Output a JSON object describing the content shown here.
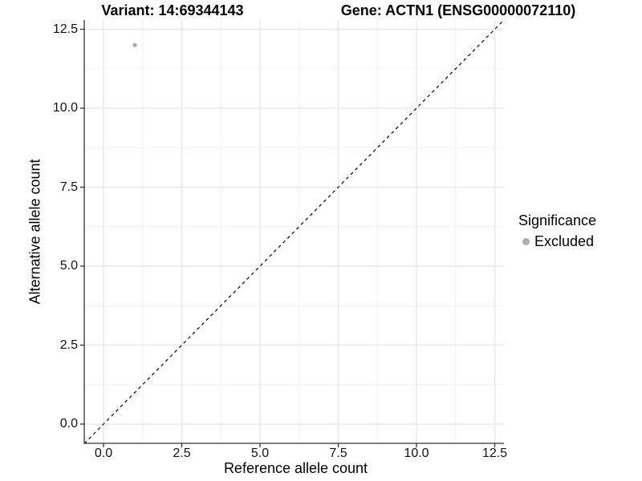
{
  "chart_data": {
    "type": "scatter",
    "titles": {
      "left": "Variant: 14:69344143",
      "right": "Gene: ACTN1 (ENSG00000072110)"
    },
    "x_axis": {
      "label": "Reference allele count",
      "ticks": [
        0,
        2.5,
        5,
        7.5,
        10,
        12.5
      ],
      "tick_labels": [
        "0.0",
        "2.5",
        "5.0",
        "7.5",
        "10.0",
        "12.5"
      ],
      "minor_ticks": [
        1.25,
        3.75,
        6.25,
        8.75,
        11.25
      ],
      "range": [
        -0.62,
        12.8
      ]
    },
    "y_axis": {
      "label": "Alternative allele count",
      "ticks": [
        0,
        2.5,
        5,
        7.5,
        10,
        12.5
      ],
      "tick_labels": [
        "0.0",
        "2.5",
        "5.0",
        "7.5",
        "10.0",
        "12.5"
      ],
      "minor_ticks": [
        1.25,
        3.75,
        6.25,
        8.75,
        11.25
      ],
      "range": [
        -0.62,
        12.8
      ]
    },
    "points": [
      {
        "x": 1,
        "y": 12,
        "series": "Excluded"
      }
    ],
    "reference_line": {
      "slope": 1,
      "intercept": 0,
      "style": "dashed",
      "color": "#000000"
    },
    "legend": {
      "title": "Significance",
      "position": "right",
      "items": [
        {
          "label": "Excluded",
          "color": "#aeaeae",
          "marker": "circle"
        }
      ]
    },
    "grid": {
      "major": true,
      "minor": true
    },
    "colors": {
      "background": "#ffffff",
      "grid_major": "#e4e4e4",
      "grid_minor": "#f1f1f1",
      "axis": "#333333"
    }
  }
}
